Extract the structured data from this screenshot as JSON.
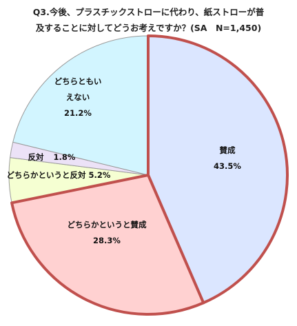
{
  "chart_data": {
    "type": "pie",
    "title_lines": [
      "Q3.今後、プラスチックストローに代わり、紙ストローが普",
      "及することに対してどうお考えですか？(SA　N=1,450)"
    ],
    "slices": [
      {
        "label_lines": [
          "賛成"
        ],
        "value_text": "43.5%",
        "value": 43.5,
        "color": "#dbe6ff"
      },
      {
        "label_lines": [
          "どちらかというと賛成"
        ],
        "value_text": "28.3%",
        "value": 28.3,
        "color": "#ffd1d1"
      },
      {
        "label_lines": [
          "どちらかというと反対"
        ],
        "value_text": "5.2%",
        "value": 5.2,
        "color": "#f5ffd2"
      },
      {
        "label_lines": [
          "反対"
        ],
        "value_text": "1.8%",
        "value": 1.8,
        "color": "#ece2f7"
      },
      {
        "label_lines": [
          "どちらともい",
          "えない"
        ],
        "value_text": "21.2%",
        "value": 21.2,
        "color": "#d2f5ff"
      }
    ],
    "highlight_color": "#c0504d"
  }
}
